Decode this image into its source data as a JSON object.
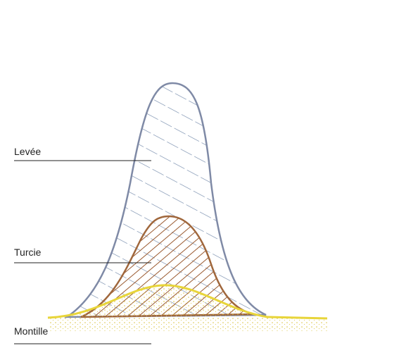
{
  "labels": [
    "Levée",
    "Turcie",
    "Montille"
  ]
}
